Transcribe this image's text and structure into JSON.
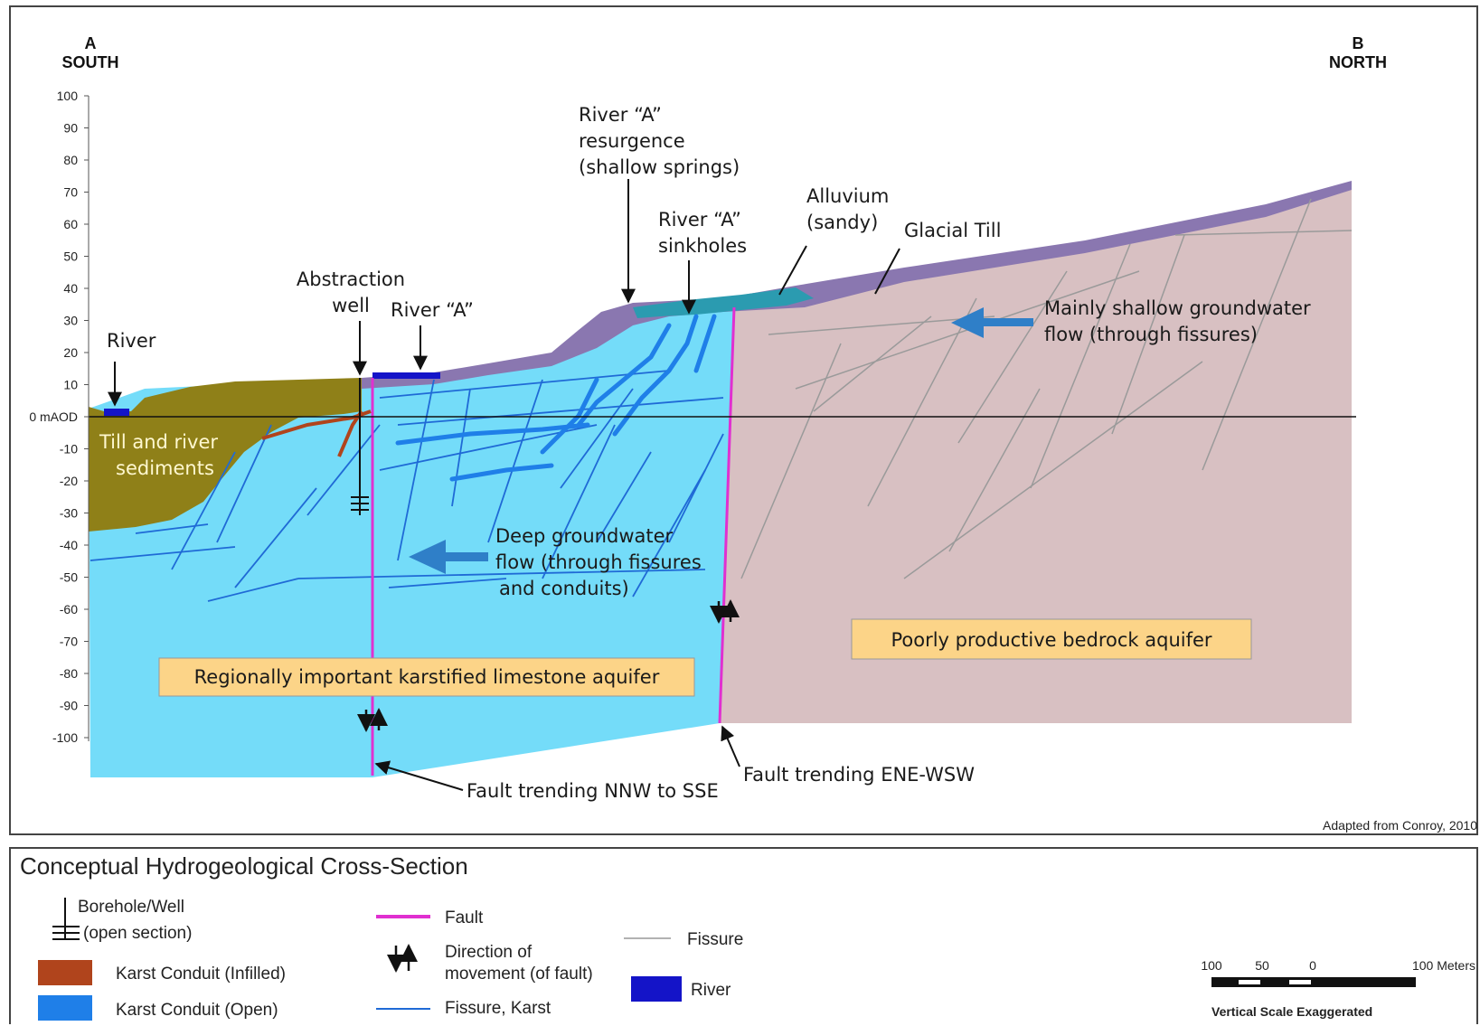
{
  "ends": {
    "a_letter": "A",
    "a_dir": "SOUTH",
    "b_letter": "B",
    "b_dir": "NORTH"
  },
  "y_axis": {
    "ticks": [
      "100",
      "90",
      "80",
      "70",
      "60",
      "50",
      "40",
      "30",
      "20",
      "10",
      "0 mAOD",
      "-10",
      "-20",
      "-30",
      "-40",
      "-50",
      "-60",
      "-70",
      "-80",
      "-90",
      "-100"
    ]
  },
  "labels": {
    "river": "River",
    "abstraction_well_1": "Abstraction",
    "abstraction_well_2": "well",
    "river_a": "River “A”",
    "resurgence_1": "River “A”",
    "resurgence_2": "resurgence",
    "resurgence_3": "(shallow springs)",
    "sinkholes_1": "River “A”",
    "sinkholes_2": "sinkholes",
    "alluvium_1": "Alluvium",
    "alluvium_2": "(sandy)",
    "glacial_till": "Glacial Till",
    "shallow_flow_1": "Mainly shallow groundwater",
    "shallow_flow_2": "flow (through fissures)",
    "till_sediments_1": "Till and river",
    "till_sediments_2": "sediments",
    "deep_flow_1": "Deep groundwater",
    "deep_flow_2": "flow (through fissures",
    "deep_flow_3": "and conduits)",
    "limestone_aquifer": "Regionally important karstified limestone aquifer",
    "bedrock_aquifer": "Poorly productive bedrock aquifer",
    "fault_nnw": "Fault trending NNW to SSE",
    "fault_ene": "Fault trending ENE-WSW",
    "credit": "Adapted from Conroy, 2010"
  },
  "legend": {
    "title": "Conceptual Hydrogeological Cross-Section",
    "borehole_1": "Borehole/Well",
    "borehole_2": "(open section)",
    "karst_infilled": "Karst Conduit (Infilled)",
    "karst_open": "Karst Conduit (Open)",
    "fault": "Fault",
    "fault_move_1": "Direction of",
    "fault_move_2": "movement (of fault)",
    "fissure_karst": "Fissure, Karst",
    "fissure": "Fissure",
    "river": "River",
    "scale_100": "100",
    "scale_50": "50",
    "scale_0": "0",
    "scale_100m": "100 Meters",
    "scale_note": "Vertical Scale Exaggerated"
  },
  "colors": {
    "limestone": "#74dcf9",
    "bedrock": "#d8c0c2",
    "till": "#8f8018",
    "glacial_till": "#8a77b0",
    "alluvium": "#2b9bb0",
    "karst_open": "#1f7fe8",
    "karst_infilled": "#b0441c",
    "fault": "#e030d0",
    "fissure": "#999999",
    "river": "#1414c8",
    "label_box": "#fcd488",
    "flow_arrow": "#2f7fc8"
  }
}
